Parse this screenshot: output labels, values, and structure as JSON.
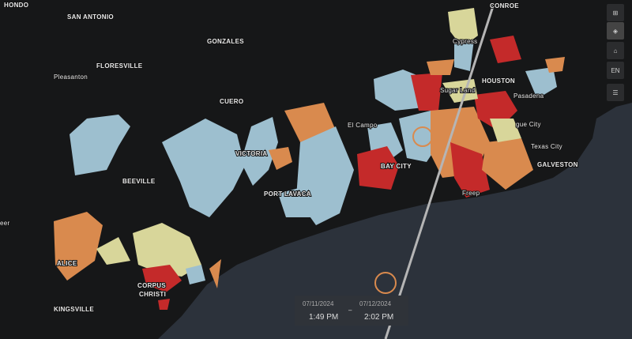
{
  "labels": [
    "HONDO",
    "CONROE",
    "SAN ANTONIO",
    "GONZALES",
    "FLORESVILLE",
    "Pleasanton",
    "CUERO",
    "VICTORIA",
    "El Campo",
    "BAY CITY",
    "PORT LAVACA",
    "BEEVILLE",
    "ALICE",
    "CORPUS",
    "CHRISTI",
    "KINGSVILLE",
    "eer",
    "Cypress",
    "Sugar Land",
    "HOUSTON",
    "Pasadena",
    "gue City",
    "Texas City",
    "GALVESTON",
    "Freep"
  ],
  "toolbar": {
    "language": "EN"
  },
  "time_range": {
    "start_date": "07/11/2024",
    "start_time": "1:49 PM",
    "separator": "–",
    "end_date": "07/12/2024",
    "end_time": "2:02 PM"
  }
}
